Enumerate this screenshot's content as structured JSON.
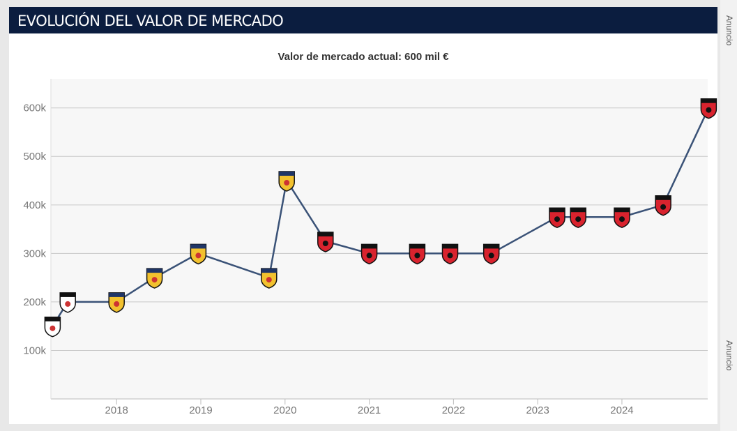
{
  "header": {
    "title": "EVOLUCIÓN DEL VALOR DE MERCADO"
  },
  "sidebar": [
    "Anuncio",
    "Anuncio"
  ],
  "chart_data": {
    "type": "line",
    "subtitle": "Valor de mercado actual: 600 mil €",
    "x": [
      2017.24,
      2017.42,
      2018.0,
      2018.45,
      2018.97,
      2019.81,
      2020.02,
      2020.48,
      2021.0,
      2021.57,
      2021.96,
      2022.45,
      2023.23,
      2023.48,
      2024.0,
      2024.49,
      2025.03
    ],
    "series": [
      {
        "color": "#3a5277",
        "values": [
          150000,
          200000,
          200000,
          250000,
          300000,
          250000,
          450000,
          325000,
          300000,
          300000,
          300000,
          300000,
          375000,
          375000,
          375000,
          400000,
          600000
        ],
        "marker_colors": [
          "#ffffff",
          "#ffffff",
          "#f2c12e",
          "#f2c12e",
          "#f2c12e",
          "#f2c12e",
          "#f2c12e",
          "#d9232e",
          "#d9232e",
          "#d9232e",
          "#d9232e",
          "#d9232e",
          "#d9232e",
          "#d9232e",
          "#d9232e",
          "#d9232e",
          "#d9232e"
        ]
      }
    ],
    "xlim": [
      2017.22,
      2025.06
    ],
    "xticks": [
      2018,
      2019,
      2020,
      2021,
      2022,
      2023,
      2024
    ],
    "ylim": [
      0,
      660000
    ],
    "yticks": [
      {
        "value": 100000,
        "label": "100k"
      },
      {
        "value": 200000,
        "label": "200k"
      },
      {
        "value": 300000,
        "label": "300k"
      },
      {
        "value": 400000,
        "label": "400k"
      },
      {
        "value": 500000,
        "label": "500k"
      },
      {
        "value": 600000,
        "label": "600k"
      }
    ],
    "grid": true
  }
}
